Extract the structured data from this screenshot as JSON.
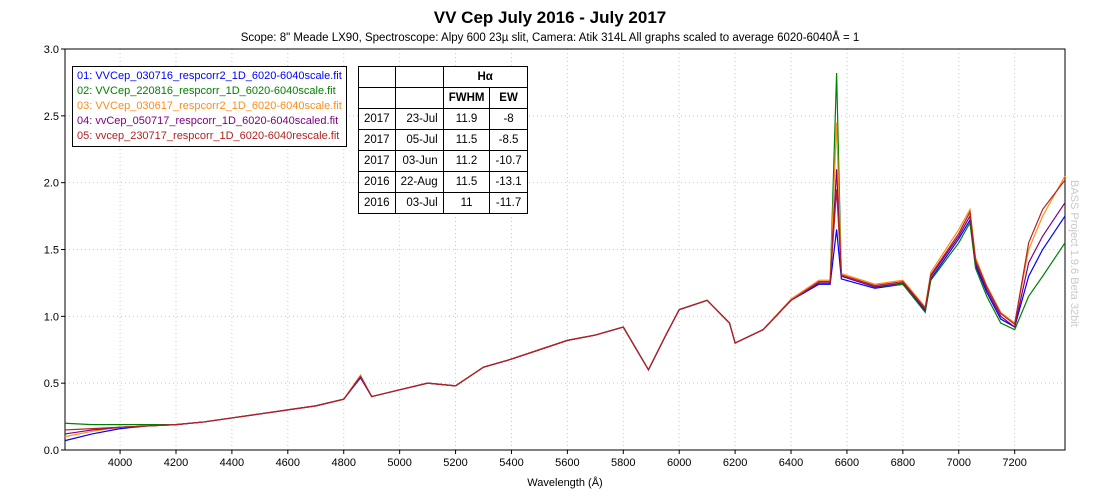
{
  "chart_data": {
    "type": "line",
    "title": "VV Cep July 2016 - July 2017",
    "subtitle": "Scope: 8\" Meade LX90, Spectroscope: Alpy 600 23µ slit, Camera: Atik 314L     All graphs scaled to average 6020-6040Å = 1",
    "xlabel": "Wavelength (Å)",
    "ylabel": "",
    "xlim": [
      3803,
      7380
    ],
    "ylim": [
      0,
      3.0
    ],
    "xticks": [
      4000,
      4200,
      4400,
      4600,
      4800,
      5000,
      5200,
      5400,
      5600,
      5800,
      6000,
      6200,
      6400,
      6600,
      6800,
      7000,
      7200
    ],
    "yticks": [
      "0.0",
      "0.5",
      "1.0",
      "1.5",
      "2.0",
      "2.5",
      "3.0"
    ],
    "grid": true,
    "legend_placement": "top-left",
    "x": [
      3800,
      3900,
      4000,
      4100,
      4200,
      4300,
      4400,
      4500,
      4600,
      4700,
      4800,
      4860,
      4900,
      5000,
      5100,
      5200,
      5300,
      5400,
      5500,
      5600,
      5700,
      5800,
      5890,
      5950,
      6000,
      6100,
      6180,
      6200,
      6300,
      6400,
      6500,
      6540,
      6563,
      6580,
      6700,
      6800,
      6880,
      6900,
      7000,
      7040,
      7060,
      7100,
      7150,
      7200,
      7250,
      7300,
      7380
    ],
    "series": [
      {
        "name": "01: VVCep_030716_respcorr2_1D_6020-6040scale.fit",
        "color": "#0000ff",
        "values": [
          0.07,
          0.12,
          0.16,
          0.18,
          0.19,
          0.21,
          0.24,
          0.27,
          0.3,
          0.33,
          0.38,
          0.54,
          0.4,
          0.45,
          0.5,
          0.48,
          0.62,
          0.68,
          0.75,
          0.82,
          0.86,
          0.92,
          0.6,
          0.85,
          1.05,
          1.12,
          0.95,
          0.8,
          0.9,
          1.12,
          1.24,
          1.24,
          1.65,
          1.28,
          1.21,
          1.24,
          1.04,
          1.28,
          1.58,
          1.72,
          1.38,
          1.18,
          0.98,
          0.92,
          1.3,
          1.5,
          1.75
        ]
      },
      {
        "name": "02: VVCep_220816_respcorr_1D_6020-6040scale.fit",
        "color": "#008000",
        "values": [
          0.2,
          0.19,
          0.19,
          0.19,
          0.19,
          0.21,
          0.24,
          0.27,
          0.3,
          0.33,
          0.38,
          0.55,
          0.4,
          0.45,
          0.5,
          0.48,
          0.62,
          0.68,
          0.75,
          0.82,
          0.86,
          0.92,
          0.6,
          0.85,
          1.05,
          1.12,
          0.95,
          0.8,
          0.9,
          1.12,
          1.25,
          1.25,
          2.82,
          1.3,
          1.22,
          1.24,
          1.03,
          1.27,
          1.55,
          1.7,
          1.36,
          1.15,
          0.95,
          0.9,
          1.15,
          1.3,
          1.55
        ]
      },
      {
        "name": "03: VVCep_030617_respcorr2_1D_6020-6040scale.fit",
        "color": "#ff8c1a",
        "values": [
          0.1,
          0.14,
          0.17,
          0.18,
          0.19,
          0.21,
          0.24,
          0.27,
          0.3,
          0.33,
          0.38,
          0.56,
          0.4,
          0.45,
          0.5,
          0.48,
          0.62,
          0.68,
          0.75,
          0.82,
          0.86,
          0.92,
          0.6,
          0.85,
          1.05,
          1.12,
          0.95,
          0.8,
          0.9,
          1.13,
          1.27,
          1.27,
          2.45,
          1.32,
          1.24,
          1.27,
          1.07,
          1.33,
          1.65,
          1.8,
          1.44,
          1.23,
          1.03,
          0.95,
          1.5,
          1.75,
          2.05
        ]
      },
      {
        "name": "04: vvCep_050717_respcorr_1D_6020-6040scaled.fit",
        "color": "#800080",
        "values": [
          0.12,
          0.15,
          0.17,
          0.18,
          0.19,
          0.21,
          0.24,
          0.27,
          0.3,
          0.33,
          0.38,
          0.55,
          0.4,
          0.45,
          0.5,
          0.48,
          0.62,
          0.68,
          0.75,
          0.82,
          0.86,
          0.92,
          0.6,
          0.85,
          1.05,
          1.12,
          0.95,
          0.8,
          0.9,
          1.12,
          1.25,
          1.25,
          2.1,
          1.3,
          1.22,
          1.25,
          1.05,
          1.3,
          1.6,
          1.75,
          1.4,
          1.2,
          1.0,
          0.92,
          1.4,
          1.6,
          1.85
        ]
      },
      {
        "name": "05: vvcep_230717_respcorr_1D_6020-6040rescale.fit",
        "color": "#b22222",
        "values": [
          0.15,
          0.16,
          0.17,
          0.18,
          0.19,
          0.21,
          0.24,
          0.27,
          0.3,
          0.33,
          0.38,
          0.55,
          0.4,
          0.45,
          0.5,
          0.48,
          0.62,
          0.68,
          0.75,
          0.82,
          0.86,
          0.92,
          0.6,
          0.85,
          1.05,
          1.12,
          0.95,
          0.8,
          0.9,
          1.12,
          1.26,
          1.26,
          1.95,
          1.31,
          1.23,
          1.26,
          1.06,
          1.31,
          1.62,
          1.78,
          1.42,
          1.22,
          1.02,
          0.94,
          1.55,
          1.8,
          2.02
        ]
      }
    ]
  },
  "table": {
    "header_group": "Hα",
    "columns": [
      "FWHM",
      "EW"
    ],
    "rows": [
      {
        "year": "2017",
        "date": "23-Jul",
        "fwhm": "11.9",
        "ew": "-8"
      },
      {
        "year": "2017",
        "date": "05-Jul",
        "fwhm": "11.5",
        "ew": "-8.5"
      },
      {
        "year": "2017",
        "date": "03-Jun",
        "fwhm": "11.2",
        "ew": "-10.7"
      },
      {
        "year": "2016",
        "date": "22-Aug",
        "fwhm": "11.5",
        "ew": "-13.1"
      },
      {
        "year": "2016",
        "date": "03-Jul",
        "fwhm": "11",
        "ew": "-11.7"
      }
    ]
  },
  "watermark": "BASS Project 1.9.6 Beta 32bit"
}
